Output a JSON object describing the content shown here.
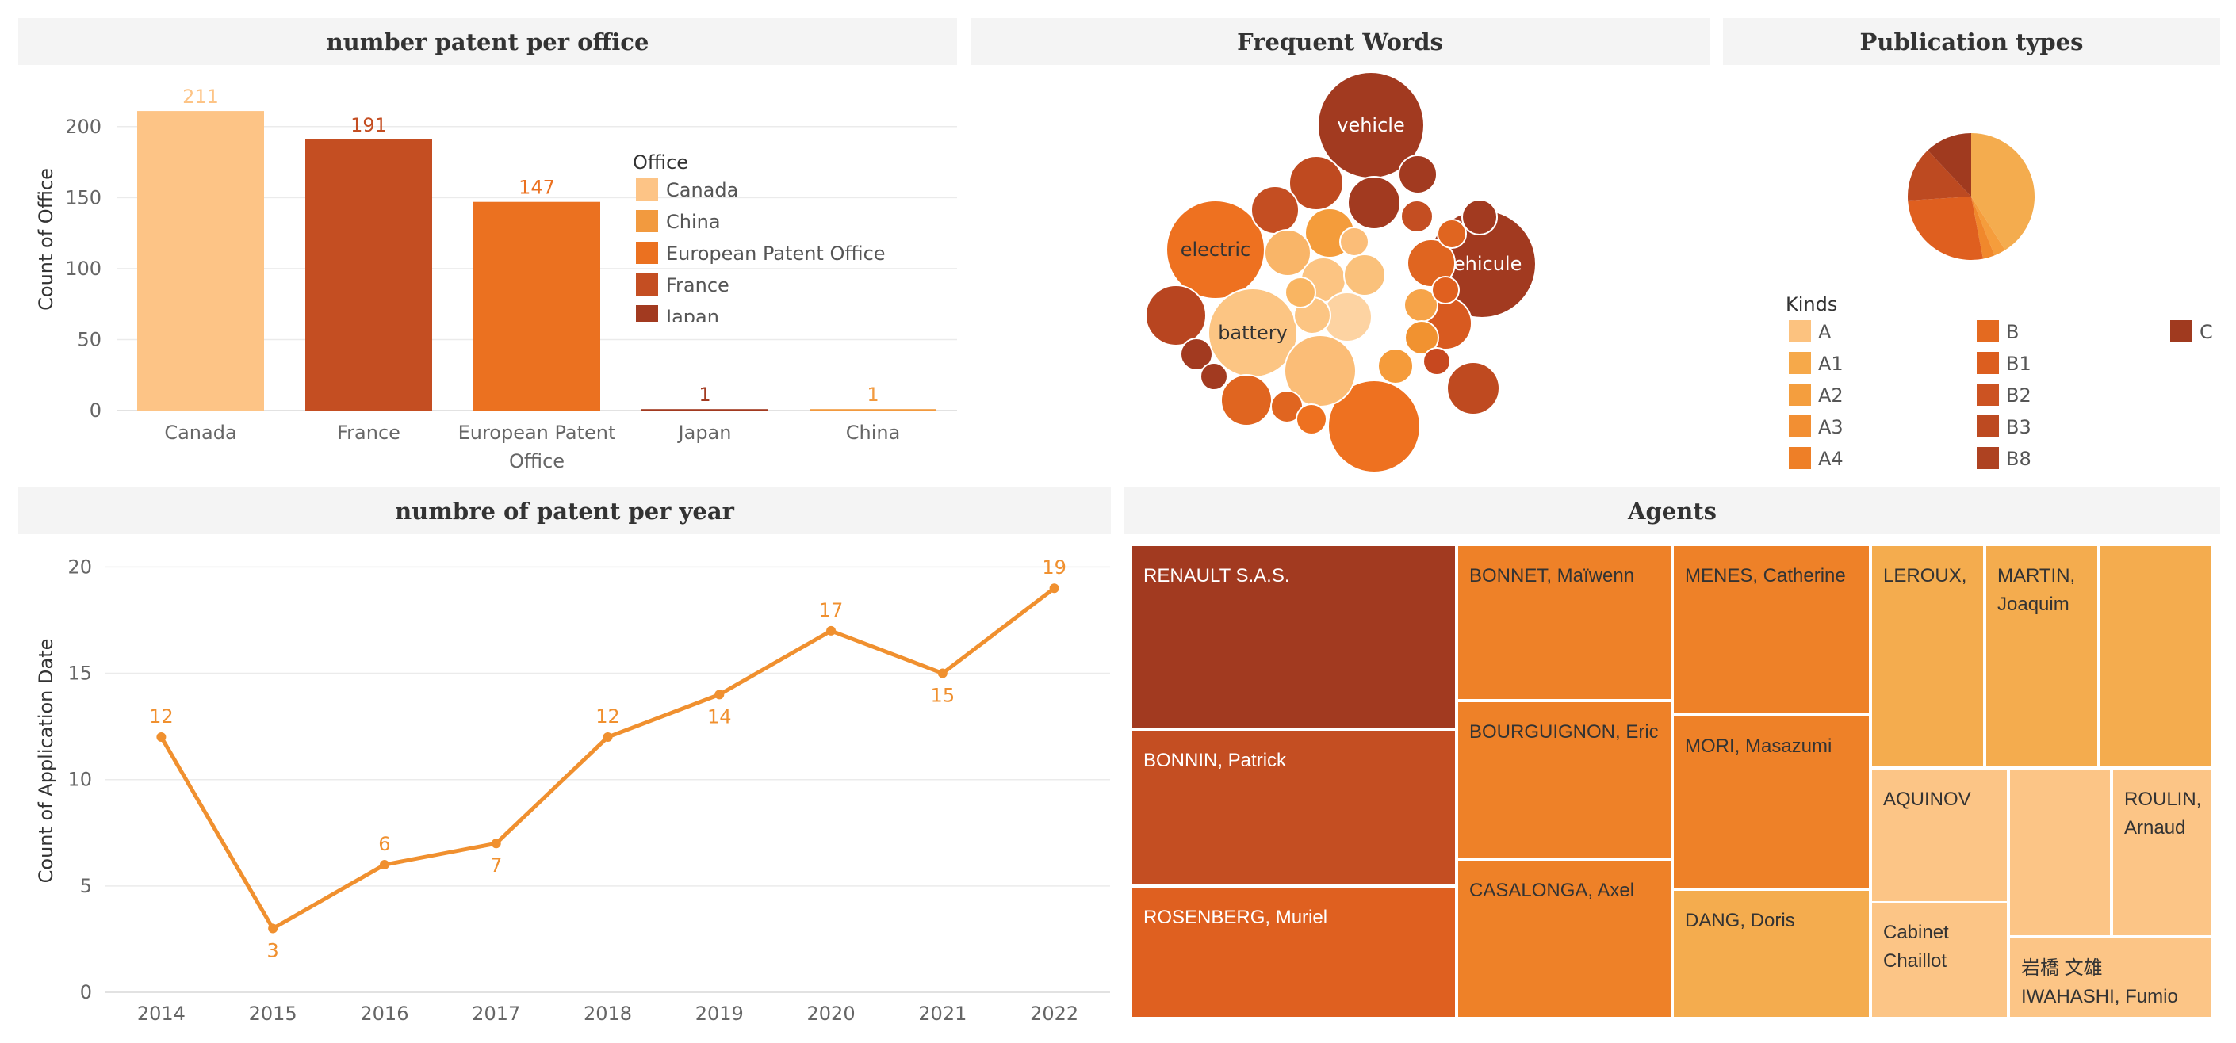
{
  "titles": {
    "office": "number patent per office",
    "words": "Frequent Words",
    "pub": "Publication types",
    "year": "numbre of patent per year",
    "agents": "Agents"
  },
  "chart_data": [
    {
      "type": "bar",
      "title": "number patent per office",
      "ylabel": "Count of Office",
      "categories": [
        "Canada",
        "France",
        "European Patent Office",
        "Japan",
        "China"
      ],
      "values": [
        211,
        191,
        147,
        1,
        1
      ],
      "colors": [
        "#fdc486",
        "#c44e22",
        "#eb7120",
        "#a23a20",
        "#f29a3f"
      ],
      "yticks": [
        0,
        50,
        100,
        150,
        200
      ],
      "ylim": [
        0,
        225
      ],
      "legend": {
        "title": "Office",
        "placement": "right",
        "entries": [
          {
            "label": "Canada",
            "color": "#fdc486"
          },
          {
            "label": "China",
            "color": "#f29a3f"
          },
          {
            "label": "European Patent Office",
            "color": "#eb7120"
          },
          {
            "label": "France",
            "color": "#c44e22"
          },
          {
            "label": "Japan",
            "color": "#a23a20"
          }
        ]
      }
    },
    {
      "type": "bubble",
      "title": "Frequent Words",
      "labeled_bubbles": [
        "vehicle",
        "vehicule",
        "electric",
        "battery"
      ]
    },
    {
      "type": "pie",
      "title": "Publication types",
      "slices": [
        {
          "label": "A",
          "value": 41,
          "color": "#f4ac4e"
        },
        {
          "label": "A1",
          "value": 3,
          "color": "#f59d3c"
        },
        {
          "label": "A2",
          "value": 3,
          "color": "#f0882c"
        },
        {
          "label": "B1",
          "value": 27,
          "color": "#df5f1f"
        },
        {
          "label": "B2",
          "value": 14,
          "color": "#bd4a21"
        },
        {
          "label": "C",
          "value": 12,
          "color": "#a03a1f"
        }
      ],
      "legend": {
        "title": "Kinds",
        "placement": "bottom",
        "entries": [
          {
            "label": "A",
            "color": "#fcc27f"
          },
          {
            "label": "A1",
            "color": "#f6a94a"
          },
          {
            "label": "A2",
            "color": "#f49e3e"
          },
          {
            "label": "A3",
            "color": "#f28f33"
          },
          {
            "label": "A4",
            "color": "#ee7f27"
          },
          {
            "label": "B",
            "color": "#e46a20"
          },
          {
            "label": "B1",
            "color": "#dc5e1f"
          },
          {
            "label": "B2",
            "color": "#cc5322"
          },
          {
            "label": "B3",
            "color": "#bd4a21"
          },
          {
            "label": "B8",
            "color": "#ae4221"
          },
          {
            "label": "C",
            "color": "#a03a1f"
          }
        ]
      }
    },
    {
      "type": "line",
      "title": "numbre of patent per year",
      "ylabel": "Count of Application Date",
      "x": [
        "2014",
        "2015",
        "2016",
        "2017",
        "2018",
        "2019",
        "2020",
        "2021",
        "2022"
      ],
      "values": [
        12,
        3,
        6,
        7,
        12,
        14,
        17,
        15,
        19
      ],
      "label_pos": [
        "above",
        "below",
        "above",
        "below",
        "above",
        "below",
        "above",
        "below",
        "above"
      ],
      "yticks": [
        0,
        5,
        10,
        15,
        20
      ],
      "ylim": [
        0,
        20.5
      ],
      "color": "#f0902f"
    },
    {
      "type": "treemap",
      "title": "Agents",
      "cells": [
        {
          "label": "RENAULT S.A.S.",
          "color": "#a23a20",
          "text": "#ffffff"
        },
        {
          "label": "BONNIN, Patrick",
          "color": "#c44e22",
          "text": "#ffffff"
        },
        {
          "label": "ROSENBERG, Muriel",
          "color": "#df6020",
          "text": "#ffffff"
        },
        {
          "label": "BONNET, Maïwenn",
          "color": "#ee8128",
          "text": "#333333"
        },
        {
          "label": "BOURGUIGNON, Eric",
          "color": "#ee8128",
          "text": "#333333"
        },
        {
          "label": "CASALONGA, Axel",
          "color": "#ee8128",
          "text": "#333333"
        },
        {
          "label": "MENES, Catherine",
          "color": "#ee8128",
          "text": "#333333"
        },
        {
          "label": "MORI, Masazumi",
          "color": "#ee8128",
          "text": "#333333"
        },
        {
          "label": "DANG, Doris",
          "color": "#f4ac4e",
          "text": "#333333"
        },
        {
          "label": "LEROUX,",
          "color": "#f4ac4e",
          "text": "#333333"
        },
        {
          "label": "MARTIN, Joaquim",
          "color": "#f4ac4e",
          "text": "#333333"
        },
        {
          "label": "",
          "color": "#f4ac4e",
          "text": "#333333"
        },
        {
          "label": "AQUINOV",
          "color": "#fcc586",
          "text": "#333333"
        },
        {
          "label": "Cabinet Chaillot",
          "color": "#fcc586",
          "text": "#333333"
        },
        {
          "label": "",
          "color": "#fcc586",
          "text": "#333333"
        },
        {
          "label": "ROULIN, Arnaud",
          "color": "#fcc586",
          "text": "#333333"
        },
        {
          "label": "岩橋 文雄 IWAHASHI, Fumio",
          "color": "#fcc586",
          "text": "#333333"
        }
      ]
    }
  ]
}
